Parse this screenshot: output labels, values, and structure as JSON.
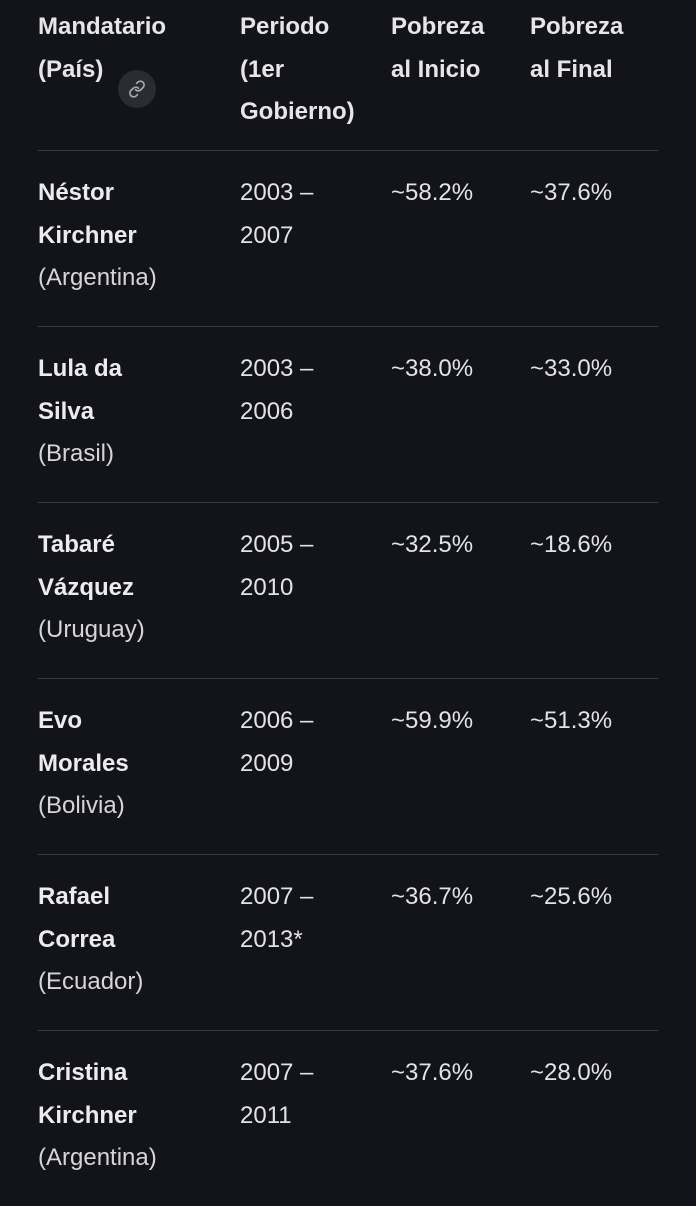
{
  "table": {
    "headers": [
      "Mandatario\n(País)",
      "Periodo\n(1er\nGobierno)",
      "Pobreza\nal Inicio",
      "Pobreza\nal Final"
    ],
    "rows": [
      {
        "name": "Néstor\nKirchner",
        "country": "(Argentina)",
        "period": "2003 –\n2007",
        "start": "~58.2%",
        "end": "~37.6%"
      },
      {
        "name": "Lula da\nSilva",
        "country": "(Brasil)",
        "period": "2003 –\n2006",
        "start": "~38.0%",
        "end": "~33.0%"
      },
      {
        "name": "Tabaré\nVázquez",
        "country": "(Uruguay)",
        "period": "2005 –\n2010",
        "start": "~32.5%",
        "end": "~18.6%"
      },
      {
        "name": "Evo\nMorales",
        "country": "(Bolivia)",
        "period": "2006 –\n2009",
        "start": "~59.9%",
        "end": "~51.3%"
      },
      {
        "name": "Rafael\nCorrea",
        "country": "(Ecuador)",
        "period": "2007 –\n2013*",
        "start": "~36.7%",
        "end": "~25.6%"
      },
      {
        "name": "Cristina\nKirchner",
        "country": "(Argentina)",
        "period": "2007 –\n2011",
        "start": "~37.6%",
        "end": "~28.0%"
      }
    ]
  },
  "icons": {
    "link": "link-icon"
  },
  "colors": {
    "background": "#131419",
    "text": "#e3e3e6",
    "divider": "#3a3b40",
    "badge": "#2b2c31"
  }
}
